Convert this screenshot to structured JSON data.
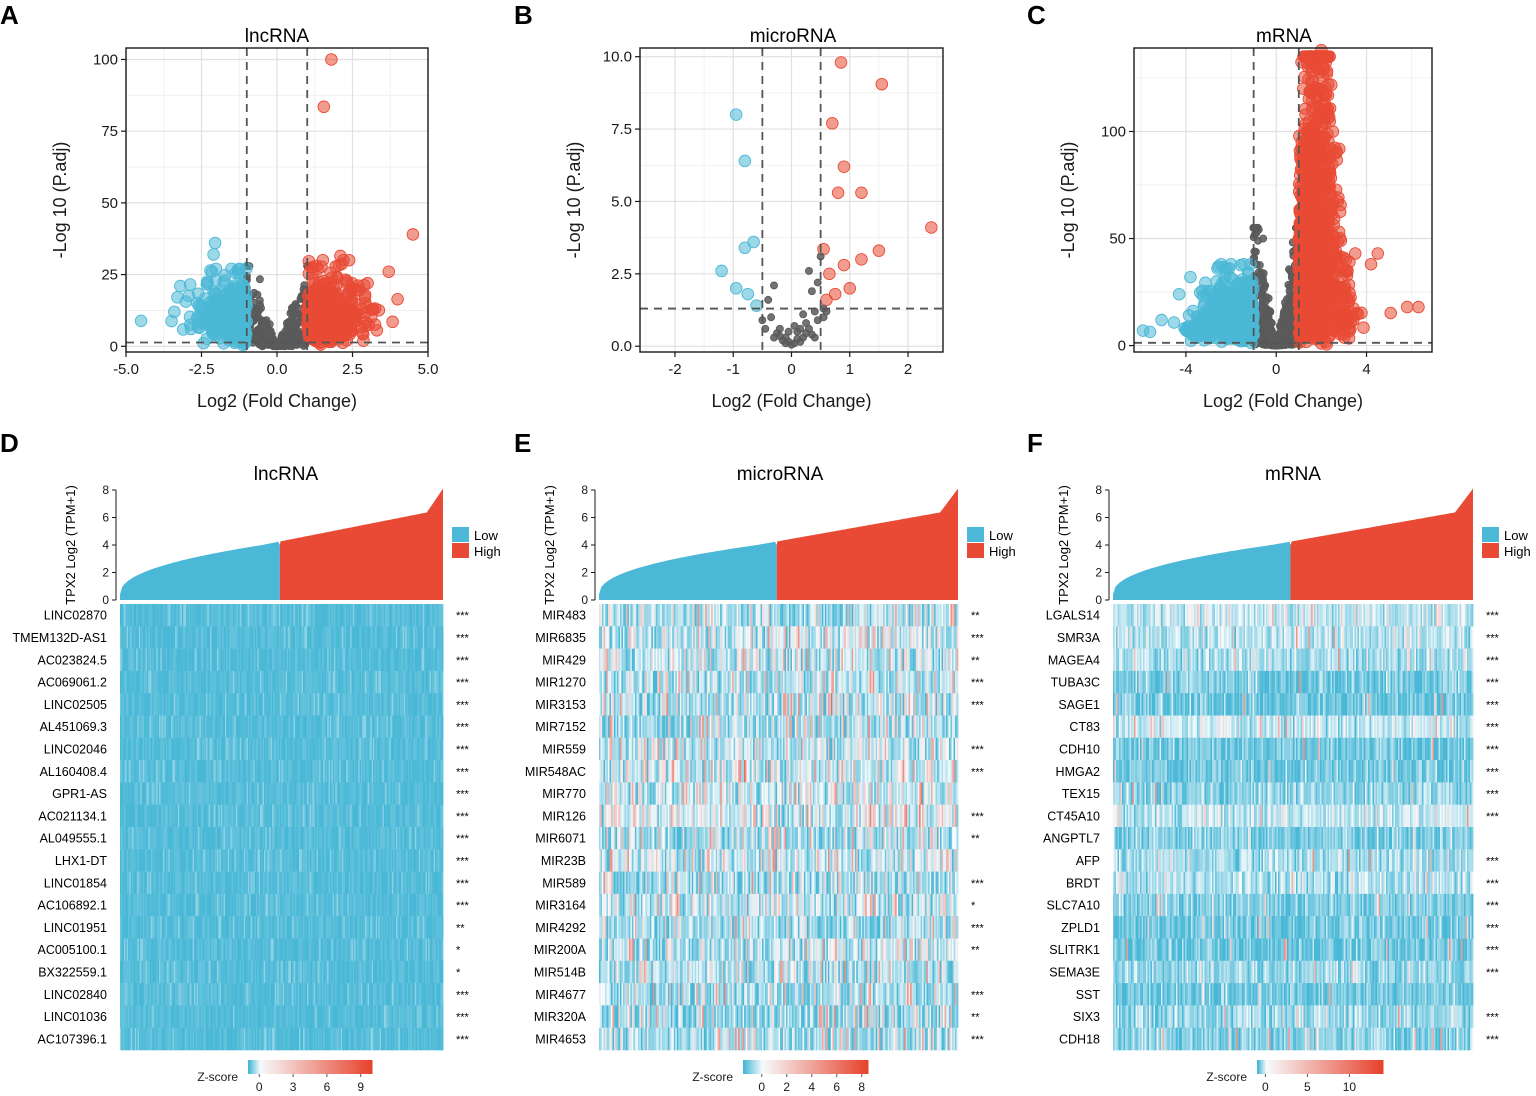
{
  "colors": {
    "low": "#4ab8d6",
    "high": "#e84a35",
    "ns": "#5a5a5a",
    "zero": "#f2f7fa"
  },
  "chart_data": [
    {
      "letter": "A",
      "type": "scatter",
      "title": "lncRNA",
      "xlabel": "Log2 (Fold Change)",
      "ylabel": "-Log 10 (P.adj)",
      "xlim": [
        -5,
        5
      ],
      "ylim": [
        -2,
        104
      ],
      "xticks": [
        "-5.0",
        "-2.5",
        "0.0",
        "2.5",
        "5.0"
      ],
      "xtick_values": [
        -5,
        -2.5,
        0,
        2.5,
        5
      ],
      "yticks": [
        "0",
        "25",
        "50",
        "75",
        "100"
      ],
      "ytick_values": [
        0,
        25,
        50,
        75,
        100
      ],
      "vlines": [
        -1,
        1
      ],
      "hline": 1.3,
      "grid": true,
      "highlight_points": [
        [
          1.8,
          100
        ],
        [
          1.55,
          83.5
        ],
        [
          4.5,
          39
        ],
        [
          2.1,
          31.5
        ],
        [
          1.3,
          28
        ],
        [
          2.3,
          22
        ],
        [
          3,
          22
        ],
        [
          3.7,
          26
        ],
        [
          -2.1,
          32
        ],
        [
          -2.05,
          36
        ],
        [
          -2.15,
          26
        ],
        [
          -3.2,
          21
        ],
        [
          -3.4,
          12
        ]
      ]
    },
    {
      "letter": "B",
      "type": "scatter",
      "title": "microRNA",
      "xlabel": "Log2 (Fold Change)",
      "ylabel": "-Log 10 (P.adj)",
      "xlim": [
        -2.6,
        2.6
      ],
      "ylim": [
        -0.2,
        10.3
      ],
      "xticks": [
        "-2",
        "-1",
        "0",
        "1",
        "2"
      ],
      "xtick_values": [
        -2,
        -1,
        0,
        1,
        2
      ],
      "yticks": [
        "0.0",
        "2.5",
        "5.0",
        "7.5",
        "10.0"
      ],
      "ytick_values": [
        0,
        2.5,
        5,
        7.5,
        10
      ],
      "vlines": [
        -0.5,
        0.5
      ],
      "hline": 1.3,
      "grid": true,
      "points": [
        [
          0.85,
          9.8
        ],
        [
          1.55,
          9.05
        ],
        [
          0.7,
          7.7
        ],
        [
          0.9,
          6.2
        ],
        [
          0.8,
          5.3
        ],
        [
          1.2,
          5.3
        ],
        [
          2.4,
          4.1
        ],
        [
          1.5,
          3.3
        ],
        [
          0.55,
          3.35
        ],
        [
          1.2,
          3.0
        ],
        [
          0.9,
          2.8
        ],
        [
          0.65,
          2.5
        ],
        [
          1.0,
          2.0
        ],
        [
          0.6,
          1.6
        ],
        [
          0.75,
          1.8
        ],
        [
          0.55,
          1.3
        ],
        [
          -0.95,
          8.0
        ],
        [
          -0.8,
          6.4
        ],
        [
          -0.65,
          3.6
        ],
        [
          -0.8,
          3.4
        ],
        [
          -1.2,
          2.6
        ],
        [
          -0.95,
          2.0
        ],
        [
          -0.75,
          1.8
        ],
        [
          -0.6,
          1.4
        ],
        [
          0.3,
          2.6
        ],
        [
          0.5,
          3.1
        ],
        [
          0.45,
          2.2
        ],
        [
          0.35,
          1.9
        ],
        [
          -0.3,
          2.1
        ],
        [
          -0.4,
          1.6
        ],
        [
          0.2,
          1.1
        ],
        [
          0.1,
          0.5
        ],
        [
          0.0,
          0.05
        ],
        [
          -0.1,
          0.3
        ],
        [
          -0.2,
          0.6
        ],
        [
          0.25,
          0.8
        ],
        [
          -0.35,
          1.0
        ],
        [
          0.4,
          1.2
        ],
        [
          -0.15,
          0.2
        ],
        [
          0.15,
          0.15
        ],
        [
          0.05,
          0.1
        ],
        [
          -0.05,
          0.15
        ],
        [
          0.3,
          0.6
        ],
        [
          -0.25,
          0.45
        ],
        [
          0.45,
          0.9
        ],
        [
          -0.5,
          0.9
        ],
        [
          0.2,
          0.3
        ],
        [
          -0.1,
          0.1
        ],
        [
          0.1,
          0.25
        ],
        [
          0.35,
          0.4
        ],
        [
          -0.3,
          0.3
        ],
        [
          0.55,
          1.0
        ],
        [
          -0.45,
          0.6
        ],
        [
          0.6,
          1.2
        ],
        [
          0.4,
          0.3
        ],
        [
          -0.2,
          0.35
        ],
        [
          0.25,
          0.45
        ],
        [
          0.15,
          0.6
        ],
        [
          -0.05,
          0.5
        ],
        [
          0.05,
          0.7
        ]
      ]
    },
    {
      "letter": "C",
      "type": "scatter",
      "title": "mRNA",
      "xlabel": "Log2 (Fold Change)",
      "ylabel": "-Log 10 (P.adj)",
      "xlim": [
        -6.3,
        6.9
      ],
      "ylim": [
        -3,
        139
      ],
      "xticks": [
        "-4",
        "0",
        "4"
      ],
      "xtick_values": [
        -4,
        0,
        4
      ],
      "yticks": [
        "0",
        "50",
        "100"
      ],
      "ytick_values": [
        0,
        50,
        100
      ],
      "vlines": [
        -1,
        1
      ],
      "hline": 1.3,
      "grid": true,
      "highlight_points": [
        [
          2,
          138
        ],
        [
          2.1,
          130
        ],
        [
          2.3,
          122
        ],
        [
          6.3,
          18
        ],
        [
          5.8,
          18
        ],
        [
          4.2,
          38
        ],
        [
          4.5,
          43
        ],
        [
          3.5,
          43
        ],
        [
          -5.9,
          7
        ],
        [
          -4.3,
          24
        ],
        [
          -3.8,
          32
        ],
        [
          -2.6,
          36
        ],
        [
          -2.2,
          36
        ],
        [
          -2.0,
          38
        ]
      ]
    },
    {
      "letter": "D",
      "type": "heatmap",
      "title": "lncRNA",
      "bar_ylabel": "TPX2 Log2 (TPM+1)",
      "bar_yticks": [
        "0",
        "2",
        "4",
        "6",
        "8"
      ],
      "bar_ytick_values": [
        0,
        2,
        4,
        6,
        8
      ],
      "bar_ylim": [
        0,
        8
      ],
      "split_fraction": 0.435,
      "legend": [
        "Low",
        "High"
      ],
      "colorbar_label": "Z-score",
      "colorbar_ticks": [
        "0",
        "3",
        "6",
        "9"
      ],
      "colorbar_tick_values": [
        0,
        3,
        6,
        9
      ],
      "colorbar_range": [
        -1,
        10
      ],
      "genes": [
        "LINC02870",
        "TMEM132D-AS1",
        "AC023824.5",
        "AC069061.2",
        "LINC02505",
        "AL451069.3",
        "LINC02046",
        "AL160408.4",
        "GPR1-AS",
        "AC021134.1",
        "AL049555.1",
        "LHX1-DT",
        "LINC01854",
        "AC106892.1",
        "LINC01951",
        "AC005100.1",
        "BX322559.1",
        "LINC02840",
        "LINC01036",
        "AC107396.1"
      ],
      "signif": [
        "***",
        "***",
        "***",
        "***",
        "***",
        "***",
        "***",
        "***",
        "***",
        "***",
        "***",
        "***",
        "***",
        "***",
        "**",
        "*",
        "*",
        "***",
        "***",
        "***"
      ]
    },
    {
      "letter": "E",
      "type": "heatmap",
      "title": "microRNA",
      "bar_ylabel": "TPX2 Log2 (TPM+1)",
      "bar_yticks": [
        "0",
        "2",
        "4",
        "6",
        "8"
      ],
      "bar_ytick_values": [
        0,
        2,
        4,
        6,
        8
      ],
      "bar_ylim": [
        0,
        8
      ],
      "split_fraction": 0.435,
      "legend": [
        "Low",
        "High"
      ],
      "colorbar_label": "Z-score",
      "colorbar_ticks": [
        "0",
        "2",
        "4",
        "6",
        "8"
      ],
      "colorbar_tick_values": [
        0,
        2,
        4,
        6,
        8
      ],
      "colorbar_range": [
        -1.5,
        8.5
      ],
      "genes": [
        "MIR483",
        "MIR6835",
        "MIR429",
        "MIR1270",
        "MIR3153",
        "MIR7152",
        "MIR559",
        "MIR548AC",
        "MIR770",
        "MIR126",
        "MIR6071",
        "MIR23B",
        "MIR589",
        "MIR3164",
        "MIR4292",
        "MIR200A",
        "MIR514B",
        "MIR4677",
        "MIR320A",
        "MIR4653"
      ],
      "signif": [
        "**",
        "***",
        "**",
        "***",
        "***",
        "",
        "***",
        "***",
        "",
        "***",
        "**",
        "",
        "***",
        "*",
        "***",
        "**",
        "",
        "***",
        "**",
        "***"
      ]
    },
    {
      "letter": "F",
      "type": "heatmap",
      "title": "mRNA",
      "bar_ylabel": "TPX2 Log2 (TPM+1)",
      "bar_yticks": [
        "0",
        "2",
        "4",
        "6",
        "8"
      ],
      "bar_ytick_values": [
        0,
        2,
        4,
        6,
        8
      ],
      "bar_ylim": [
        0,
        8
      ],
      "split_fraction": 0.48,
      "legend": [
        "Low",
        "High"
      ],
      "colorbar_label": "Z-score",
      "colorbar_ticks": [
        "0",
        "5",
        "10"
      ],
      "colorbar_tick_values": [
        0,
        5,
        10
      ],
      "colorbar_range": [
        -1,
        14
      ],
      "genes": [
        "LGALS14",
        "SMR3A",
        "MAGEA4",
        "TUBA3C",
        "SAGE1",
        "CT83",
        "CDH10",
        "HMGA2",
        "TEX15",
        "CT45A10",
        "ANGPTL7",
        "AFP",
        "BRDT",
        "SLC7A10",
        "ZPLD1",
        "SLITRK1",
        "SEMA3E",
        "SST",
        "SIX3",
        "CDH18"
      ],
      "signif": [
        "***",
        "***",
        "***",
        "***",
        "***",
        "***",
        "***",
        "***",
        "***",
        "***",
        "",
        "***",
        "***",
        "***",
        "***",
        "***",
        "***",
        "",
        "***",
        "***"
      ]
    }
  ]
}
